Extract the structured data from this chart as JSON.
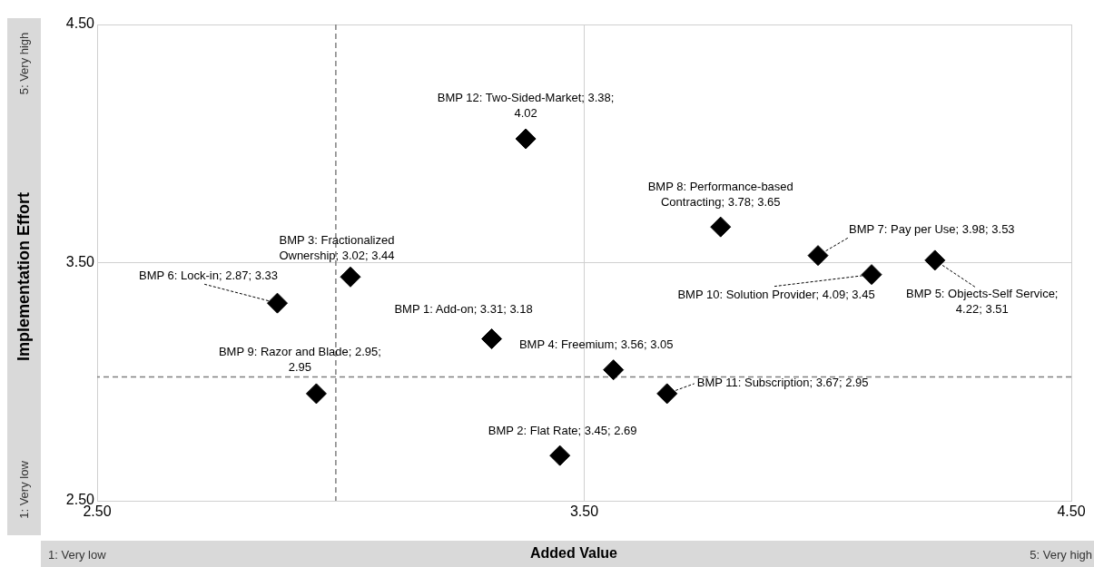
{
  "chart_data": {
    "type": "scatter",
    "xlabel": "Added Value",
    "ylabel": "Implementation Effort",
    "annotations": [
      "5: Very high",
      "1: Very low",
      "1: Very low",
      "5: Very high"
    ],
    "x": [
      3.31,
      3.45,
      3.02,
      3.56,
      4.22,
      2.87,
      3.98,
      3.78,
      2.95,
      4.09,
      3.67,
      3.38
    ],
    "values": [
      3.18,
      2.69,
      3.44,
      3.05,
      3.51,
      3.33,
      3.53,
      3.65,
      2.95,
      3.45,
      2.95,
      4.02
    ],
    "value_labels": [
      "BMP 1: Add-on; 3.31; 3.18",
      "BMP 2: Flat Rate; 3.45; 2.69",
      "BMP 3: Fractionalized Ownership; 3.02; 3.44",
      "BMP 4: Freemium; 3.56; 3.05",
      "BMP 5: Objects-Self Service; 4.22; 3.51",
      "BMP 6: Lock-in; 2.87; 3.33",
      "BMP 7: Pay per Use; 3.98; 3.53",
      "BMP 8: Performance-based Contracting; 3.78; 3.65",
      "BMP 9: Razor and Blade; 2.95; 2.95",
      "BMP 10: Solution Provider; 4.09; 3.45",
      "BMP 11: Subscription; 3.67; 2.95",
      "BMP 12: Two-Sided-Market; 3.38; 4.02"
    ],
    "color": "#000000",
    "marker": "diamond",
    "xlim": [
      2.5,
      4.5
    ],
    "xticks": [
      {
        "value": 2.5,
        "label": "2.50"
      },
      {
        "value": 3.5,
        "label": "3.50"
      },
      {
        "value": 4.5,
        "label": "4.50"
      }
    ],
    "ylim": [
      2.5,
      4.5
    ],
    "yticks": [
      {
        "value": 2.5,
        "label": "2.50"
      },
      {
        "value": 3.5,
        "label": "3.50"
      },
      {
        "value": 4.5,
        "label": "4.50"
      }
    ],
    "ref_lines": [
      {
        "axis": "x",
        "value": 2.99,
        "color": "#808080",
        "line_style": "dashed"
      },
      {
        "axis": "y",
        "value": 3.02,
        "color": "#808080",
        "line_style": "dashed"
      }
    ],
    "grid": true,
    "legend": false
  }
}
